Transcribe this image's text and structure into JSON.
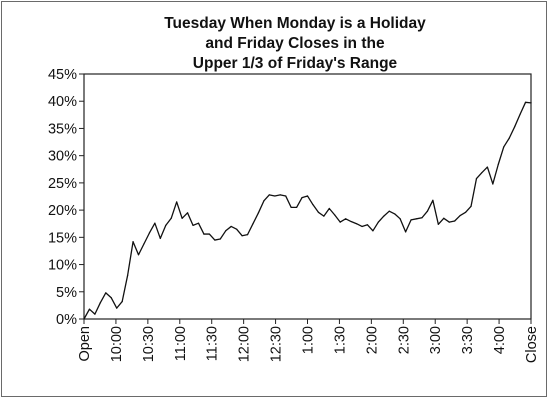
{
  "chart_data": {
    "type": "line",
    "title_lines": [
      "Tuesday When Monday is a Holiday",
      "and Friday Closes in the",
      "Upper 1/3 of Friday's Range"
    ],
    "xlabel": "",
    "ylabel": "",
    "ylim": [
      0,
      45
    ],
    "y_tick_labels": [
      "0%",
      "5%",
      "10%",
      "15%",
      "20%",
      "25%",
      "30%",
      "35%",
      "40%",
      "45%"
    ],
    "x_tick_labels": [
      "Open",
      "10:00",
      "10:30",
      "11:00",
      "11:30",
      "12:00",
      "12:30",
      "1:00",
      "1:30",
      "2:00",
      "2:30",
      "3:00",
      "3:30",
      "4:00",
      "Close"
    ],
    "grid": false,
    "legend": "none",
    "series": [
      {
        "color": "#111111",
        "values": [
          0.0,
          1.8,
          0.9,
          3.0,
          4.8,
          3.9,
          2.0,
          3.2,
          8.0,
          14.2,
          11.8,
          13.8,
          15.8,
          17.6,
          14.8,
          17.2,
          18.5,
          21.5,
          18.5,
          19.5,
          17.2,
          17.6,
          15.6,
          15.6,
          14.5,
          14.7,
          16.2,
          17.0,
          16.5,
          15.3,
          15.5,
          17.5,
          19.5,
          21.7,
          22.8,
          22.6,
          22.8,
          22.6,
          20.5,
          20.5,
          22.3,
          22.6,
          21.0,
          19.6,
          18.9,
          20.3,
          19.1,
          17.8,
          18.4,
          17.9,
          17.5,
          17.0,
          17.3,
          16.2,
          17.8,
          18.9,
          19.8,
          19.3,
          18.4,
          16.0,
          18.2,
          18.4,
          18.6,
          19.8,
          21.8,
          17.4,
          18.5,
          17.8,
          18.0,
          19.0,
          19.6,
          20.7,
          25.8,
          26.9,
          27.9,
          24.8,
          28.4,
          31.6,
          33.2,
          35.3,
          37.6,
          39.8,
          39.7
        ]
      }
    ]
  }
}
